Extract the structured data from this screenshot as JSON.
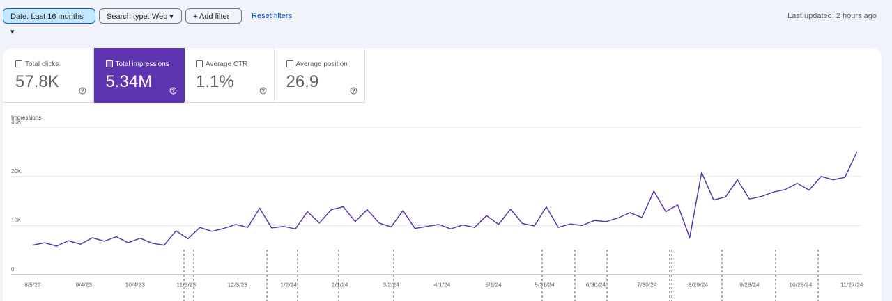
{
  "filters": {
    "date": "Date: Last 16 months",
    "search_type": "Search type: Web",
    "add": "Add filter",
    "reset": "Reset filters"
  },
  "last_updated": "Last updated: 2 hours ago",
  "metrics": [
    {
      "label": "Total clicks",
      "value": "57.8K",
      "selected": false
    },
    {
      "label": "Total impressions",
      "value": "5.34M",
      "selected": true
    },
    {
      "label": "Average CTR",
      "value": "1.1%",
      "selected": false
    },
    {
      "label": "Average position",
      "value": "26.9",
      "selected": false
    }
  ],
  "chart_data": {
    "type": "line",
    "y_label": "Impressions",
    "x": [
      "2023-08-05",
      "2023-08-12",
      "2023-08-19",
      "2023-08-26",
      "2023-09-02",
      "2023-09-09",
      "2023-09-16",
      "2023-09-23",
      "2023-09-30",
      "2023-10-07",
      "2023-10-14",
      "2023-10-21",
      "2023-10-28",
      "2023-11-04",
      "2023-11-11",
      "2023-11-18",
      "2023-11-25",
      "2023-12-02",
      "2023-12-09",
      "2023-12-16",
      "2023-12-23",
      "2023-12-30",
      "2024-01-06",
      "2024-01-13",
      "2024-01-20",
      "2024-01-27",
      "2024-02-03",
      "2024-02-10",
      "2024-02-17",
      "2024-02-24",
      "2024-03-02",
      "2024-03-09",
      "2024-03-16",
      "2024-03-23",
      "2024-03-30",
      "2024-04-06",
      "2024-04-13",
      "2024-04-20",
      "2024-04-27",
      "2024-05-04",
      "2024-05-11",
      "2024-05-18",
      "2024-05-25",
      "2024-06-01",
      "2024-06-08",
      "2024-06-15",
      "2024-06-22",
      "2024-06-29",
      "2024-07-06",
      "2024-07-13",
      "2024-07-20",
      "2024-07-27",
      "2024-08-03",
      "2024-08-10",
      "2024-08-17",
      "2024-08-24",
      "2024-08-31",
      "2024-09-07",
      "2024-09-14",
      "2024-09-21",
      "2024-09-28",
      "2024-10-05",
      "2024-10-12",
      "2024-10-19",
      "2024-10-26",
      "2024-11-02",
      "2024-11-09",
      "2024-11-16",
      "2024-11-23",
      "2024-11-30"
    ],
    "series": [
      {
        "name": "Impressions",
        "color": "#5e35b1",
        "values": [
          6000,
          6500,
          5800,
          6900,
          6200,
          7500,
          6800,
          7700,
          6500,
          7400,
          6400,
          6000,
          8900,
          7300,
          9600,
          8800,
          9400,
          10200,
          9600,
          13500,
          9500,
          9800,
          9300,
          12800,
          10500,
          13200,
          13800,
          10800,
          13200,
          10500,
          9700,
          13000,
          9400,
          9800,
          10200,
          9300,
          10100,
          9600,
          12000,
          10200,
          13300,
          10400,
          9900,
          13800,
          9600,
          10300,
          10000,
          11000,
          10800,
          11500,
          12600,
          11600,
          17000,
          12800,
          14200,
          7500,
          20800,
          15200,
          15800,
          19300,
          15400,
          15900,
          16800,
          17300,
          18600,
          17200,
          20000,
          19300,
          19800,
          25000
        ]
      }
    ],
    "xlim": [
      "2023-08-03",
      "2024-12-03"
    ],
    "xticks": [
      {
        "value": "2023-08-05",
        "label": "8/5/23"
      },
      {
        "value": "2023-09-04",
        "label": "9/4/23"
      },
      {
        "value": "2023-10-04",
        "label": "10/4/23"
      },
      {
        "value": "2023-11-03",
        "label": "11/3/23"
      },
      {
        "value": "2023-12-03",
        "label": "12/3/23"
      },
      {
        "value": "2024-01-02",
        "label": "1/2/24"
      },
      {
        "value": "2024-02-01",
        "label": "2/1/24"
      },
      {
        "value": "2024-03-02",
        "label": "3/2/24"
      },
      {
        "value": "2024-04-01",
        "label": "4/1/24"
      },
      {
        "value": "2024-05-01",
        "label": "5/1/24"
      },
      {
        "value": "2024-05-31",
        "label": "5/31/24"
      },
      {
        "value": "2024-06-30",
        "label": "6/30/24"
      },
      {
        "value": "2024-07-30",
        "label": "7/30/24"
      },
      {
        "value": "2024-08-29",
        "label": "8/29/24"
      },
      {
        "value": "2024-09-28",
        "label": "9/28/24"
      },
      {
        "value": "2024-10-28",
        "label": "10/28/24"
      },
      {
        "value": "2024-11-27",
        "label": "11/27/24"
      }
    ],
    "ylim": [
      0,
      30000
    ],
    "yticks": [
      0,
      {
        "value": 10000,
        "label": "10K"
      },
      {
        "value": 20000,
        "label": "20K"
      },
      {
        "value": 30000,
        "label": "30K"
      }
    ],
    "grid": true
  }
}
